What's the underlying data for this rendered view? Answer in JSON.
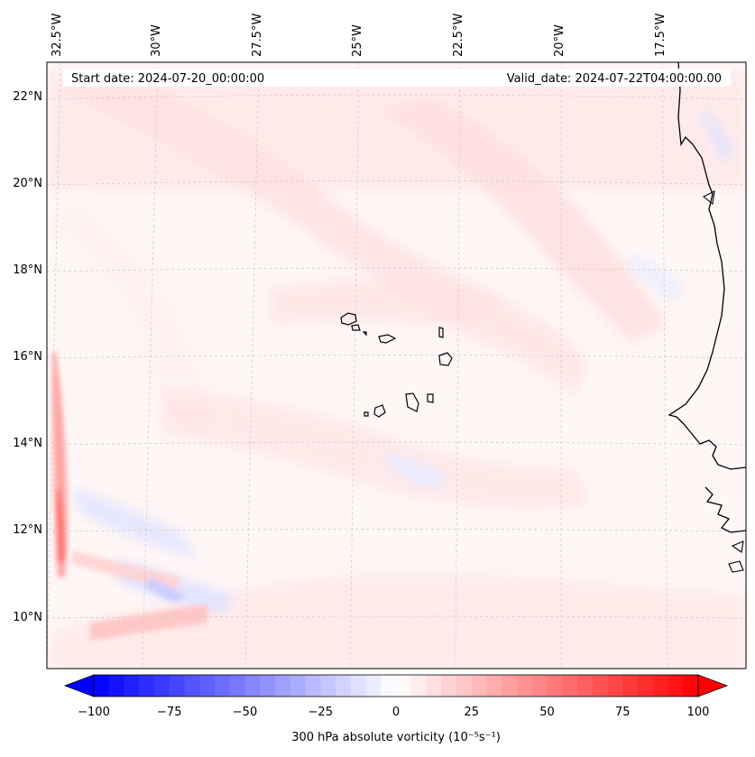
{
  "map": {
    "start_date": "Start date: 2024-07-20_00:00:00",
    "valid_date": "Valid_date: 2024-07-22T04:00:00.00",
    "lon_labels": [
      "32.5°W",
      "30°W",
      "27.5°W",
      "25°W",
      "22.5°W",
      "20°W",
      "17.5°W"
    ],
    "lat_labels": [
      "22°N",
      "20°N",
      "18°N",
      "16°N",
      "14°N",
      "12°N",
      "10°N"
    ],
    "colors": {
      "positive": "#ff0000",
      "negative": "#0000ff",
      "neutral": "#ffffff",
      "coastline": "#000000",
      "gridline": "#c8c8c8"
    }
  },
  "colorbar": {
    "label": "300 hPa absolute vorticity (10⁻⁵s⁻¹)",
    "ticks": [
      "−100",
      "−75",
      "−50",
      "−25",
      "0",
      "25",
      "50",
      "75",
      "100"
    ],
    "min": -100,
    "max": 100,
    "step": 5,
    "extend": "both"
  }
}
